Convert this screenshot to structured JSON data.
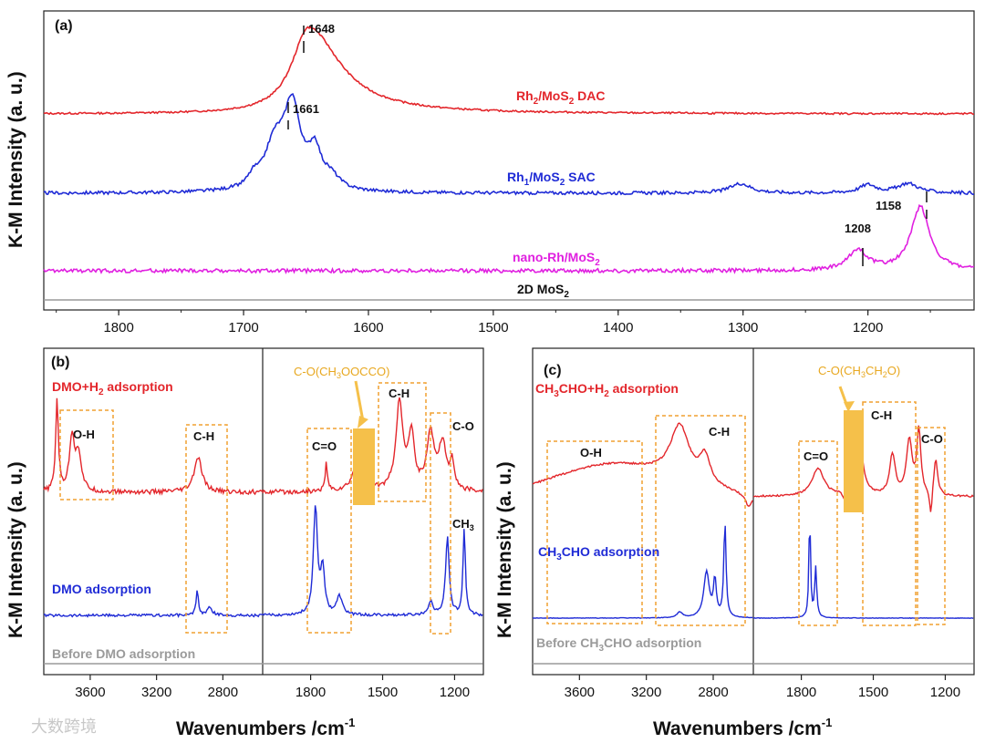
{
  "colors": {
    "red": "#e3262b",
    "blue": "#1f2bd6",
    "magenta": "#e020e0",
    "gray": "#9a9a9a",
    "orange": "#f0a030",
    "highlight": "#f5c04a"
  },
  "watermark": "大数跨境",
  "chart_data": [
    {
      "panel": "(a)",
      "type": "line",
      "xlabel": "",
      "ylabel": "K-M Intensity (a. u.)",
      "x_range": [
        1860,
        1115
      ],
      "x_ticks": [
        1800,
        1700,
        1600,
        1500,
        1400,
        1300,
        1200
      ],
      "series": [
        {
          "name": "Rh2/MoS2 DAC",
          "label_main": "Rh",
          "label_sub": "2",
          "label_mid": "/MoS",
          "label_sub2": "2",
          "label_tail": " DAC",
          "color": "red",
          "baseline": 0.0,
          "peaks": [
            {
              "x": 1648,
              "h": 1.0,
              "w": 16
            }
          ],
          "noise": 0.01
        },
        {
          "name": "Rh1/MoS2 SAC",
          "label_main": "Rh",
          "label_sub": "1",
          "label_mid": "/MoS",
          "label_sub2": "2",
          "label_tail": " SAC",
          "color": "blue",
          "baseline": 0.0,
          "peaks": [
            {
              "x": 1661,
              "h": 1.0,
              "w": 8
            },
            {
              "x": 1675,
              "h": 0.55,
              "w": 10
            },
            {
              "x": 1643,
              "h": 0.45,
              "w": 6
            },
            {
              "x": 1630,
              "h": 0.15,
              "w": 8
            },
            {
              "x": 1692,
              "h": 0.12,
              "w": 5
            },
            {
              "x": 1302,
              "h": 0.12,
              "w": 10
            },
            {
              "x": 1200,
              "h": 0.1,
              "w": 8
            },
            {
              "x": 1168,
              "h": 0.12,
              "w": 10
            }
          ],
          "noise": 0.02
        },
        {
          "name": "nano-Rh/MoS2",
          "label_main": "nano-Rh/MoS",
          "label_sub": "2",
          "label_mid": "",
          "label_sub2": "",
          "label_tail": "",
          "color": "magenta",
          "baseline": 0.0,
          "peaks": [
            {
              "x": 1158,
              "h": 1.0,
              "w": 9
            },
            {
              "x": 1208,
              "h": 0.32,
              "w": 9
            }
          ],
          "noise": 0.03
        },
        {
          "name": "2D MoS2",
          "label_main": "2D MoS",
          "label_sub": "2",
          "label_mid": "",
          "label_sub2": "",
          "label_tail": "",
          "color": "gray",
          "baseline": 0.0,
          "peaks": [],
          "noise": 0
        }
      ],
      "annotations": [
        "1648",
        "1661",
        "1208",
        "1158"
      ]
    },
    {
      "panel": "(b)",
      "type": "line",
      "ylabel": "K-M Intensity (a. u.)",
      "left_x_range": [
        3880,
        2560
      ],
      "left_x_ticks": [
        3600,
        3200,
        2800
      ],
      "right_x_range": [
        2000,
        1080
      ],
      "right_x_ticks": [
        1800,
        1500,
        1200
      ],
      "series": [
        {
          "name": "DMO+H2 adsorption",
          "label_main": "DMO+H",
          "label_sub": "2",
          "label_tail": " adsorption",
          "color": "red"
        },
        {
          "name": "DMO adsorption",
          "label_main": "DMO adsorption",
          "label_sub": "",
          "label_tail": "",
          "color": "blue"
        },
        {
          "name": "Before DMO adsorption",
          "label_main": "Before DMO adsorption",
          "label_sub": "",
          "label_tail": "",
          "color": "gray"
        }
      ],
      "boxes": [
        "O-H",
        "C-H",
        "C=O",
        "C-H",
        "C-O"
      ],
      "highlight": {
        "label_main": "C-O(CH",
        "sub1": "3",
        "label_mid": "OOCCO)",
        "x": 1590
      },
      "extra": "CH3",
      "extra_main": "CH",
      "extra_sub": "3"
    },
    {
      "panel": "(c)",
      "type": "line",
      "ylabel": "K-M Intensity (a. u.)",
      "left_x_range": [
        3880,
        2560
      ],
      "left_x_ticks": [
        3600,
        3200,
        2800
      ],
      "right_x_range": [
        2000,
        1080
      ],
      "right_x_ticks": [
        1800,
        1500,
        1200
      ],
      "series": [
        {
          "name": "CH3CHO+H2 adsorption",
          "label_main": "CH",
          "label_sub": "3",
          "label_tail": "CHO+H",
          "label_sub2": "2",
          "label_tail2": " adsorption",
          "color": "red"
        },
        {
          "name": "CH3CHO adsorption",
          "label_main": "CH",
          "label_sub": "3",
          "label_tail": "CHO adsorption",
          "color": "blue"
        },
        {
          "name": "Before CH3CHO adsorption",
          "label_main": "Before CH",
          "label_sub": "3",
          "label_tail": "CHO adsorption",
          "color": "gray"
        }
      ],
      "boxes": [
        "O-H",
        "C-H",
        "C=O",
        "C-H",
        "C-O"
      ],
      "highlight": {
        "label_main": "C-O(CH",
        "sub1": "3",
        "label_mid": "CH",
        "sub2": "2",
        "label_tail": "O)",
        "x": 1560
      }
    }
  ],
  "axis_titles": {
    "bottom_b": "Wavenumbers /cm",
    "bottom_c": "Wavenumbers /cm",
    "sup": "-1",
    "y_a": "K-M Intensity (a. u.)",
    "y_b": "K-M Intensity (a. u.)",
    "y_c": "K-M Intensity (a. u.)"
  }
}
